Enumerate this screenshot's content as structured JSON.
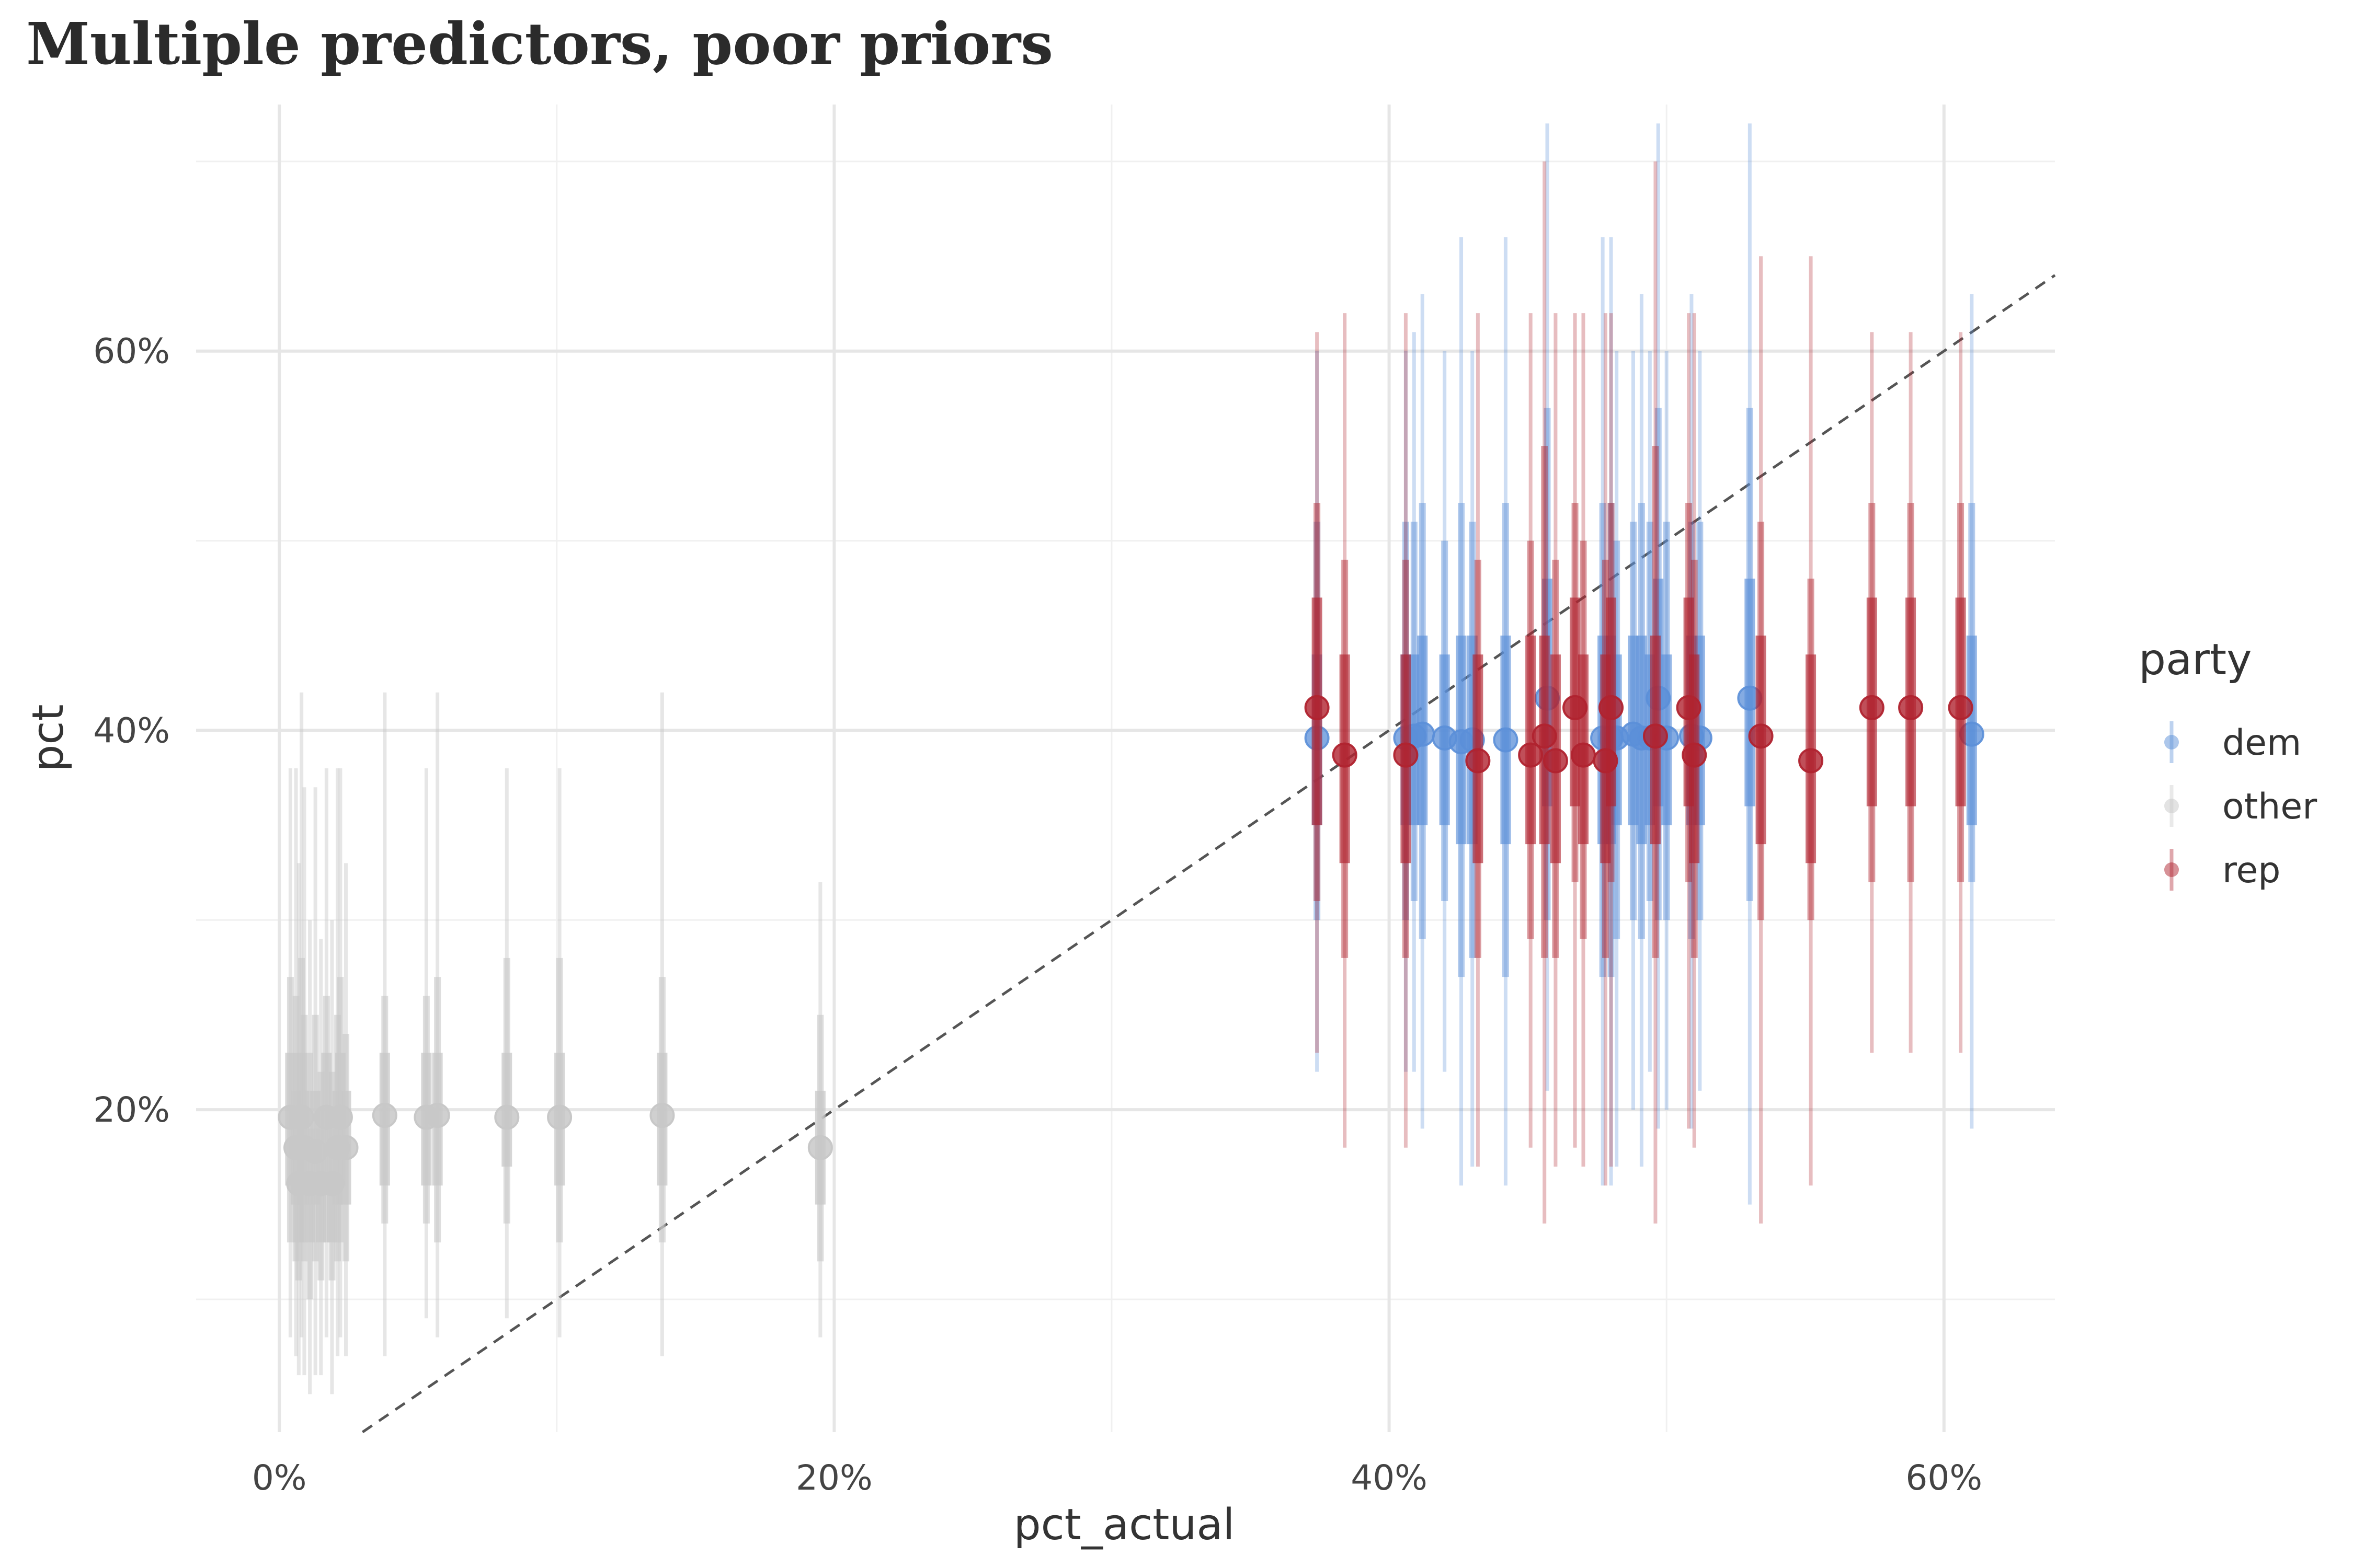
{
  "chart_data": {
    "type": "scatter",
    "title": "Multiple predictors, poor priors",
    "xlabel": "pct_actual",
    "ylabel": "pct",
    "xlim": [
      -0.03,
      0.64
    ],
    "ylim": [
      0.03,
      0.73
    ],
    "x_ticks": [
      0,
      0.2,
      0.4,
      0.6
    ],
    "x_tick_labels": [
      "0%",
      "20%",
      "40%",
      "60%"
    ],
    "y_ticks": [
      0.2,
      0.4,
      0.6
    ],
    "y_tick_labels": [
      "20%",
      "40%",
      "60%"
    ],
    "grid": true,
    "reference_line": "y = x (dashed)",
    "legend": {
      "title": "party",
      "placement": "right",
      "entries": [
        "dem",
        "other",
        "rep"
      ]
    },
    "colors": {
      "dem": "#5b8fd8",
      "other": "#c8c8c8",
      "rep": "#b0232f"
    },
    "series": [
      {
        "name": "dem",
        "points": [
          {
            "x": 0.374,
            "y": 0.396,
            "inner": [
              0.35,
              0.44
            ],
            "mid": [
              0.3,
              0.51
            ],
            "outer": [
              0.22,
              0.6
            ]
          },
          {
            "x": 0.406,
            "y": 0.396,
            "inner": [
              0.35,
              0.44
            ],
            "mid": [
              0.3,
              0.51
            ],
            "outer": [
              0.22,
              0.6
            ]
          },
          {
            "x": 0.409,
            "y": 0.397,
            "inner": [
              0.35,
              0.44
            ],
            "mid": [
              0.31,
              0.51
            ],
            "outer": [
              0.22,
              0.61
            ]
          },
          {
            "x": 0.412,
            "y": 0.398,
            "inner": [
              0.35,
              0.45
            ],
            "mid": [
              0.29,
              0.52
            ],
            "outer": [
              0.19,
              0.63
            ]
          },
          {
            "x": 0.42,
            "y": 0.396,
            "inner": [
              0.35,
              0.44
            ],
            "mid": [
              0.31,
              0.5
            ],
            "outer": [
              0.22,
              0.6
            ]
          },
          {
            "x": 0.426,
            "y": 0.394,
            "inner": [
              0.34,
              0.45
            ],
            "mid": [
              0.27,
              0.52
            ],
            "outer": [
              0.16,
              0.66
            ]
          },
          {
            "x": 0.43,
            "y": 0.395,
            "inner": [
              0.34,
              0.45
            ],
            "mid": [
              0.28,
              0.51
            ],
            "outer": [
              0.17,
              0.6
            ]
          },
          {
            "x": 0.442,
            "y": 0.395,
            "inner": [
              0.34,
              0.45
            ],
            "mid": [
              0.27,
              0.52
            ],
            "outer": [
              0.16,
              0.66
            ]
          },
          {
            "x": 0.457,
            "y": 0.417,
            "inner": [
              0.36,
              0.48
            ],
            "mid": [
              0.3,
              0.57
            ],
            "outer": [
              0.21,
              0.72
            ]
          },
          {
            "x": 0.477,
            "y": 0.396,
            "inner": [
              0.34,
              0.45
            ],
            "mid": [
              0.27,
              0.52
            ],
            "outer": [
              0.16,
              0.66
            ]
          },
          {
            "x": 0.48,
            "y": 0.396,
            "inner": [
              0.34,
              0.45
            ],
            "mid": [
              0.27,
              0.52
            ],
            "outer": [
              0.16,
              0.66
            ]
          },
          {
            "x": 0.482,
            "y": 0.396,
            "inner": [
              0.35,
              0.44
            ],
            "mid": [
              0.29,
              0.5
            ],
            "outer": [
              0.17,
              0.6
            ]
          },
          {
            "x": 0.488,
            "y": 0.398,
            "inner": [
              0.35,
              0.45
            ],
            "mid": [
              0.3,
              0.51
            ],
            "outer": [
              0.2,
              0.6
            ]
          },
          {
            "x": 0.491,
            "y": 0.396,
            "inner": [
              0.34,
              0.45
            ],
            "mid": [
              0.29,
              0.52
            ],
            "outer": [
              0.17,
              0.63
            ]
          },
          {
            "x": 0.494,
            "y": 0.396,
            "inner": [
              0.35,
              0.44
            ],
            "mid": [
              0.31,
              0.51
            ],
            "outer": [
              0.22,
              0.6
            ]
          },
          {
            "x": 0.497,
            "y": 0.417,
            "inner": [
              0.36,
              0.48
            ],
            "mid": [
              0.3,
              0.57
            ],
            "outer": [
              0.19,
              0.72
            ]
          },
          {
            "x": 0.5,
            "y": 0.396,
            "inner": [
              0.35,
              0.44
            ],
            "mid": [
              0.3,
              0.51
            ],
            "outer": [
              0.2,
              0.6
            ]
          },
          {
            "x": 0.509,
            "y": 0.397,
            "inner": [
              0.35,
              0.45
            ],
            "mid": [
              0.29,
              0.51
            ],
            "outer": [
              0.19,
              0.63
            ]
          },
          {
            "x": 0.512,
            "y": 0.396,
            "inner": [
              0.35,
              0.45
            ],
            "mid": [
              0.3,
              0.51
            ],
            "outer": [
              0.21,
              0.6
            ]
          },
          {
            "x": 0.53,
            "y": 0.417,
            "inner": [
              0.36,
              0.48
            ],
            "mid": [
              0.31,
              0.57
            ],
            "outer": [
              0.15,
              0.72
            ]
          },
          {
            "x": 0.61,
            "y": 0.398,
            "inner": [
              0.35,
              0.45
            ],
            "mid": [
              0.32,
              0.52
            ],
            "outer": [
              0.19,
              0.63
            ]
          }
        ]
      },
      {
        "name": "other",
        "points": [
          {
            "x": 0.004,
            "y": 0.196,
            "inner": [
              0.16,
              0.23
            ],
            "mid": [
              0.13,
              0.27
            ],
            "outer": [
              0.08,
              0.38
            ]
          },
          {
            "x": 0.006,
            "y": 0.18,
            "inner": [
              0.15,
              0.21
            ],
            "mid": [
              0.12,
              0.26
            ],
            "outer": [
              0.07,
              0.38
            ]
          },
          {
            "x": 0.007,
            "y": 0.161,
            "inner": [
              0.13,
              0.19
            ],
            "mid": [
              0.11,
              0.23
            ],
            "outer": [
              0.06,
              0.33
            ]
          },
          {
            "x": 0.008,
            "y": 0.196,
            "inner": [
              0.16,
              0.23
            ],
            "mid": [
              0.13,
              0.28
            ],
            "outer": [
              0.08,
              0.42
            ]
          },
          {
            "x": 0.009,
            "y": 0.18,
            "inner": [
              0.15,
              0.21
            ],
            "mid": [
              0.12,
              0.25
            ],
            "outer": [
              0.06,
              0.37
            ]
          },
          {
            "x": 0.011,
            "y": 0.161,
            "inner": [
              0.13,
              0.19
            ],
            "mid": [
              0.1,
              0.23
            ],
            "outer": [
              0.05,
              0.3
            ]
          },
          {
            "x": 0.013,
            "y": 0.178,
            "inner": [
              0.15,
              0.21
            ],
            "mid": [
              0.12,
              0.25
            ],
            "outer": [
              0.06,
              0.37
            ]
          },
          {
            "x": 0.015,
            "y": 0.161,
            "inner": [
              0.13,
              0.19
            ],
            "mid": [
              0.11,
              0.22
            ],
            "outer": [
              0.06,
              0.29
            ]
          },
          {
            "x": 0.017,
            "y": 0.196,
            "inner": [
              0.16,
              0.23
            ],
            "mid": [
              0.13,
              0.26
            ],
            "outer": [
              0.08,
              0.38
            ]
          },
          {
            "x": 0.019,
            "y": 0.161,
            "inner": [
              0.13,
              0.19
            ],
            "mid": [
              0.11,
              0.22
            ],
            "outer": [
              0.05,
              0.3
            ]
          },
          {
            "x": 0.021,
            "y": 0.18,
            "inner": [
              0.15,
              0.21
            ],
            "mid": [
              0.12,
              0.25
            ],
            "outer": [
              0.07,
              0.38
            ]
          },
          {
            "x": 0.022,
            "y": 0.196,
            "inner": [
              0.16,
              0.23
            ],
            "mid": [
              0.13,
              0.27
            ],
            "outer": [
              0.08,
              0.38
            ]
          },
          {
            "x": 0.024,
            "y": 0.18,
            "inner": [
              0.15,
              0.21
            ],
            "mid": [
              0.12,
              0.24
            ],
            "outer": [
              0.07,
              0.33
            ]
          },
          {
            "x": 0.038,
            "y": 0.197,
            "inner": [
              0.16,
              0.23
            ],
            "mid": [
              0.14,
              0.26
            ],
            "outer": [
              0.07,
              0.42
            ]
          },
          {
            "x": 0.053,
            "y": 0.196,
            "inner": [
              0.16,
              0.23
            ],
            "mid": [
              0.14,
              0.26
            ],
            "outer": [
              0.09,
              0.38
            ]
          },
          {
            "x": 0.057,
            "y": 0.197,
            "inner": [
              0.16,
              0.23
            ],
            "mid": [
              0.13,
              0.27
            ],
            "outer": [
              0.08,
              0.42
            ]
          },
          {
            "x": 0.082,
            "y": 0.196,
            "inner": [
              0.17,
              0.23
            ],
            "mid": [
              0.14,
              0.28
            ],
            "outer": [
              0.09,
              0.38
            ]
          },
          {
            "x": 0.101,
            "y": 0.196,
            "inner": [
              0.16,
              0.23
            ],
            "mid": [
              0.13,
              0.28
            ],
            "outer": [
              0.08,
              0.38
            ]
          },
          {
            "x": 0.138,
            "y": 0.197,
            "inner": [
              0.16,
              0.23
            ],
            "mid": [
              0.13,
              0.27
            ],
            "outer": [
              0.07,
              0.42
            ]
          },
          {
            "x": 0.195,
            "y": 0.18,
            "inner": [
              0.15,
              0.21
            ],
            "mid": [
              0.12,
              0.25
            ],
            "outer": [
              0.08,
              0.32
            ]
          }
        ]
      },
      {
        "name": "rep",
        "points": [
          {
            "x": 0.374,
            "y": 0.412,
            "inner": [
              0.35,
              0.47
            ],
            "mid": [
              0.31,
              0.52
            ],
            "outer": [
              0.23,
              0.61
            ]
          },
          {
            "x": 0.384,
            "y": 0.387,
            "inner": [
              0.33,
              0.44
            ],
            "mid": [
              0.28,
              0.49
            ],
            "outer": [
              0.18,
              0.62
            ]
          },
          {
            "x": 0.406,
            "y": 0.387,
            "inner": [
              0.33,
              0.44
            ],
            "mid": [
              0.28,
              0.49
            ],
            "outer": [
              0.18,
              0.62
            ]
          },
          {
            "x": 0.432,
            "y": 0.384,
            "inner": [
              0.33,
              0.44
            ],
            "mid": [
              0.28,
              0.49
            ],
            "outer": [
              0.17,
              0.62
            ]
          },
          {
            "x": 0.451,
            "y": 0.387,
            "inner": [
              0.34,
              0.45
            ],
            "mid": [
              0.29,
              0.5
            ],
            "outer": [
              0.18,
              0.62
            ]
          },
          {
            "x": 0.456,
            "y": 0.397,
            "inner": [
              0.34,
              0.45
            ],
            "mid": [
              0.28,
              0.55
            ],
            "outer": [
              0.14,
              0.7
            ]
          },
          {
            "x": 0.46,
            "y": 0.384,
            "inner": [
              0.33,
              0.44
            ],
            "mid": [
              0.28,
              0.49
            ],
            "outer": [
              0.17,
              0.62
            ]
          },
          {
            "x": 0.467,
            "y": 0.412,
            "inner": [
              0.36,
              0.47
            ],
            "mid": [
              0.32,
              0.52
            ],
            "outer": [
              0.18,
              0.62
            ]
          },
          {
            "x": 0.47,
            "y": 0.387,
            "inner": [
              0.34,
              0.44
            ],
            "mid": [
              0.29,
              0.5
            ],
            "outer": [
              0.17,
              0.62
            ]
          },
          {
            "x": 0.478,
            "y": 0.384,
            "inner": [
              0.33,
              0.44
            ],
            "mid": [
              0.28,
              0.49
            ],
            "outer": [
              0.16,
              0.62
            ]
          },
          {
            "x": 0.48,
            "y": 0.412,
            "inner": [
              0.36,
              0.47
            ],
            "mid": [
              0.32,
              0.52
            ],
            "outer": [
              0.17,
              0.62
            ]
          },
          {
            "x": 0.496,
            "y": 0.397,
            "inner": [
              0.34,
              0.45
            ],
            "mid": [
              0.28,
              0.55
            ],
            "outer": [
              0.14,
              0.7
            ]
          },
          {
            "x": 0.508,
            "y": 0.412,
            "inner": [
              0.36,
              0.47
            ],
            "mid": [
              0.32,
              0.52
            ],
            "outer": [
              0.19,
              0.62
            ]
          },
          {
            "x": 0.51,
            "y": 0.387,
            "inner": [
              0.33,
              0.44
            ],
            "mid": [
              0.28,
              0.49
            ],
            "outer": [
              0.18,
              0.62
            ]
          },
          {
            "x": 0.534,
            "y": 0.397,
            "inner": [
              0.34,
              0.45
            ],
            "mid": [
              0.3,
              0.51
            ],
            "outer": [
              0.14,
              0.65
            ]
          },
          {
            "x": 0.552,
            "y": 0.384,
            "inner": [
              0.33,
              0.44
            ],
            "mid": [
              0.3,
              0.48
            ],
            "outer": [
              0.16,
              0.65
            ]
          },
          {
            "x": 0.574,
            "y": 0.412,
            "inner": [
              0.36,
              0.47
            ],
            "mid": [
              0.32,
              0.52
            ],
            "outer": [
              0.23,
              0.61
            ]
          },
          {
            "x": 0.588,
            "y": 0.412,
            "inner": [
              0.36,
              0.47
            ],
            "mid": [
              0.32,
              0.52
            ],
            "outer": [
              0.23,
              0.61
            ]
          },
          {
            "x": 0.606,
            "y": 0.412,
            "inner": [
              0.36,
              0.47
            ],
            "mid": [
              0.32,
              0.52
            ],
            "outer": [
              0.23,
              0.61
            ]
          }
        ]
      }
    ]
  }
}
